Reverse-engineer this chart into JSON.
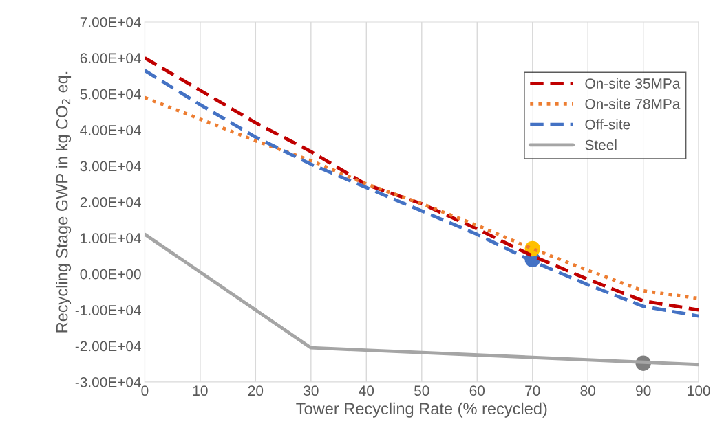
{
  "chart_data": {
    "type": "line",
    "xlabel": "Tower Recycling Rate (% recycled)",
    "ylabel": "Recycling Stage GWP in kg CO$_{2}$ eq.",
    "x": [
      0,
      10,
      20,
      30,
      40,
      50,
      60,
      70,
      80,
      90,
      100
    ],
    "xlim": [
      0,
      100
    ],
    "xticks": [
      0,
      10,
      20,
      30,
      40,
      50,
      60,
      70,
      80,
      90,
      100
    ],
    "ylim": [
      -30000,
      70000
    ],
    "yticks": [
      {
        "value": -30000,
        "label": "-3.00E+04"
      },
      {
        "value": -20000,
        "label": "-2.00E+04"
      },
      {
        "value": -10000,
        "label": "-1.00E+04"
      },
      {
        "value": 0,
        "label": "0.00E+00"
      },
      {
        "value": 10000,
        "label": "1.00E+04"
      },
      {
        "value": 20000,
        "label": "2.00E+04"
      },
      {
        "value": 30000,
        "label": "3.00E+04"
      },
      {
        "value": 40000,
        "label": "4.00E+04"
      },
      {
        "value": 50000,
        "label": "5.00E+04"
      },
      {
        "value": 60000,
        "label": "6.00E+04"
      },
      {
        "value": 70000,
        "label": "7.00E+04"
      }
    ],
    "grid": "x",
    "legend": "top right",
    "series": [
      {
        "name": "On-site 35MPa",
        "color": "#c00000",
        "line_style": "dashed",
        "values": [
          60000,
          51000,
          42000,
          34000,
          24800,
          19500,
          12500,
          5000,
          -1500,
          -7500,
          -10000
        ]
      },
      {
        "name": "On-site 78MPa",
        "color": "#ed7d31",
        "line_style": "dotted",
        "values": [
          49000,
          43000,
          37000,
          31500,
          25000,
          19500,
          13500,
          7000,
          1000,
          -4700,
          -6800
        ]
      },
      {
        "name": "Off-site",
        "color": "#4472c4",
        "line_style": "dashed",
        "values": [
          56500,
          47000,
          38000,
          30500,
          24000,
          17500,
          11000,
          3500,
          -3000,
          -9000,
          -11700
        ]
      },
      {
        "name": "Steel",
        "color": "#a5a5a5",
        "line_style": "solid",
        "x": [
          0,
          30,
          100
        ],
        "values": [
          11000,
          -20500,
          -25200
        ]
      },
      {
        "type": "scatter",
        "color": "#4472c4",
        "marker": "circle",
        "x": [
          70
        ],
        "values": [
          4000
        ]
      },
      {
        "type": "scatter",
        "color": "#ffc000",
        "marker": "circle",
        "x": [
          70
        ],
        "values": [
          7000
        ]
      },
      {
        "type": "scatter",
        "color": "#7f7f7f",
        "marker": "circle",
        "x": [
          90
        ],
        "values": [
          -24800
        ]
      }
    ]
  }
}
